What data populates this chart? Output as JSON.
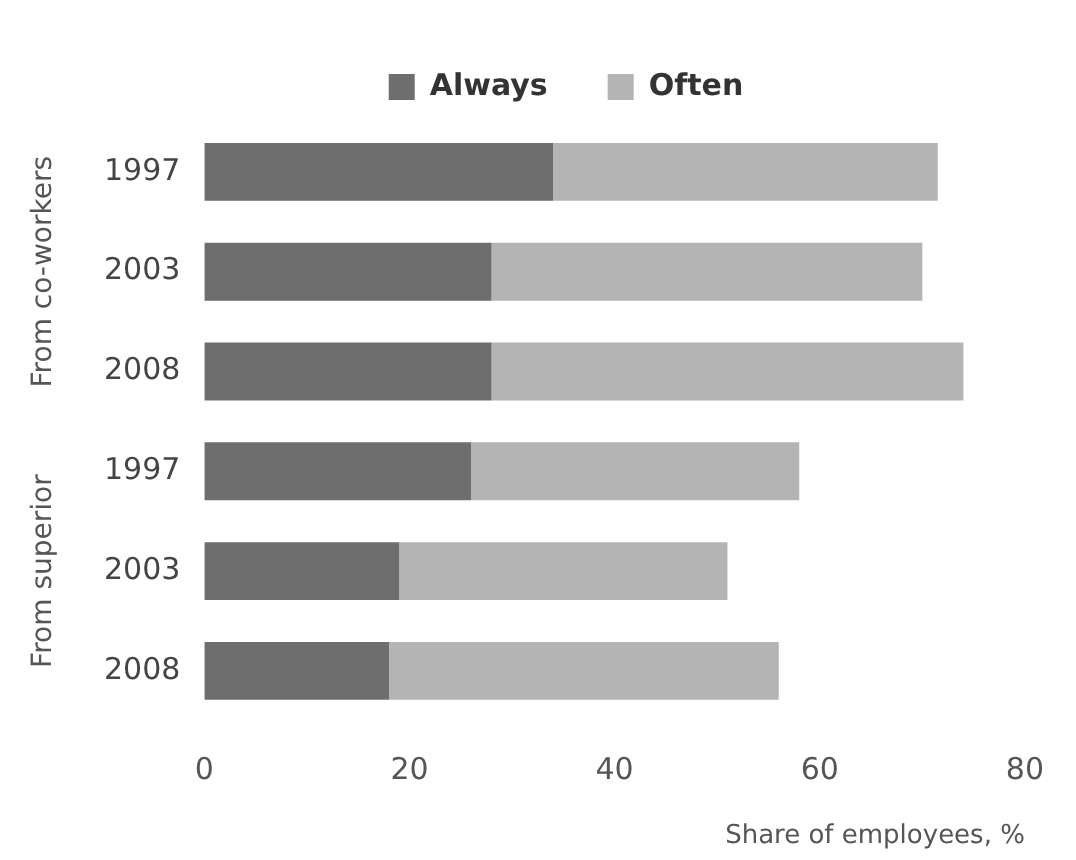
{
  "chart_data": {
    "type": "bar",
    "orientation": "horizontal",
    "stacked": true,
    "categories": [
      "1997",
      "2003",
      "2008",
      "1997",
      "2003",
      "2008"
    ],
    "series": [
      {
        "name": "Always",
        "color": "#6e6e6e",
        "values": [
          34,
          28,
          28,
          26,
          19,
          18
        ]
      },
      {
        "name": "Often",
        "color": "#b4b4b4",
        "values": [
          37.5,
          42,
          46,
          32,
          32,
          38
        ]
      }
    ],
    "xlim": [
      0,
      80
    ],
    "xticks": [
      0,
      20,
      40,
      60,
      80
    ],
    "xlabel": "Share of employees, %",
    "annotations": [
      "From co-workers",
      "From superior"
    ],
    "legend": "top",
    "grid": false
  }
}
